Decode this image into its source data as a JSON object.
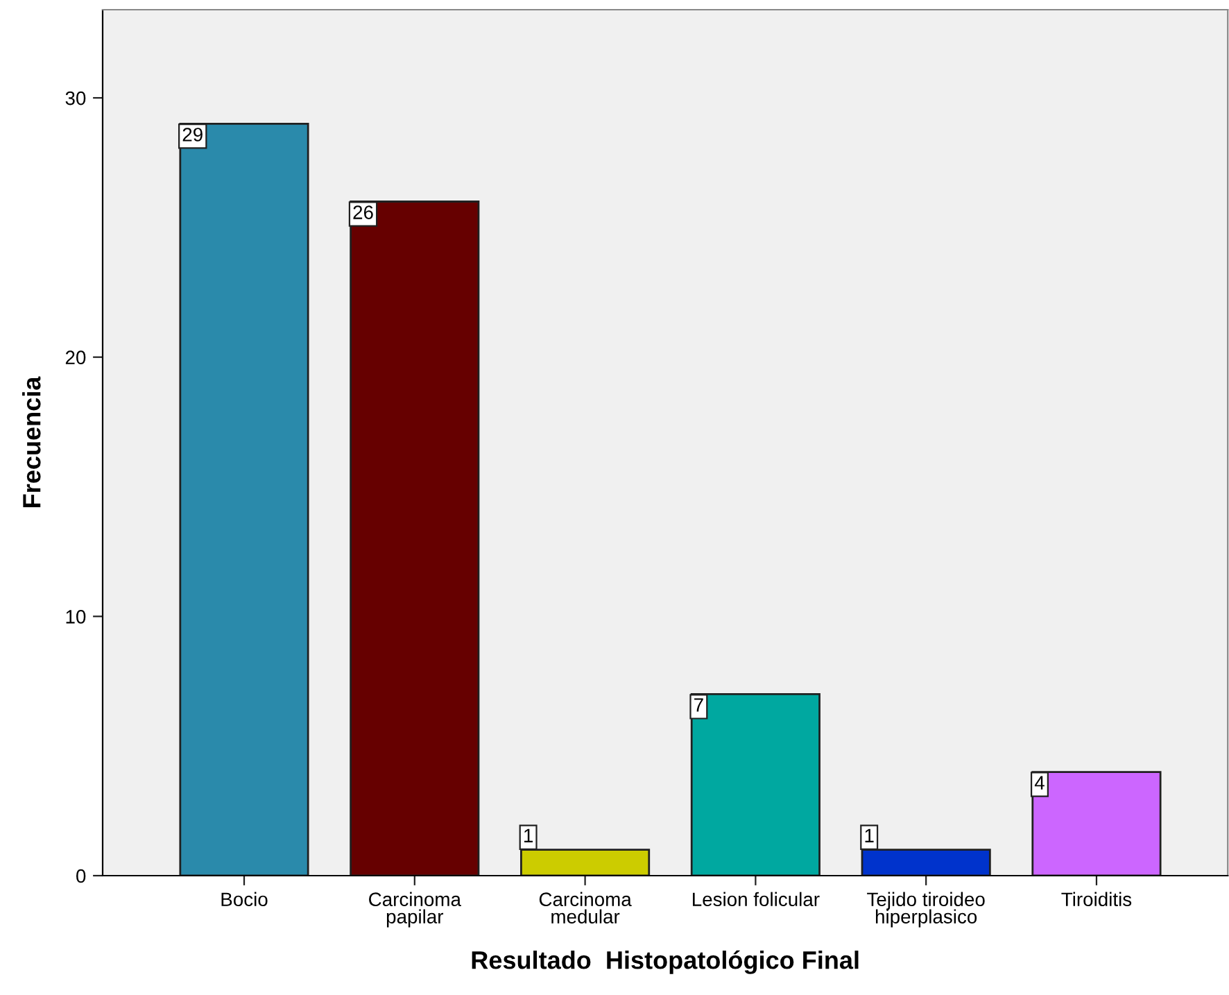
{
  "chart_data": {
    "type": "bar",
    "xlabel": "Resultado  Histopatológico Final",
    "ylabel": "Frecuencia",
    "categories": [
      "Bocio",
      "Carcinoma\npapilar",
      "Carcinoma\nmedular",
      "Lesion folicular",
      "Tejido tiroideo\nhiperplasico",
      "Tiroiditis"
    ],
    "values": [
      29,
      26,
      1,
      7,
      1,
      4
    ],
    "colors": [
      "#2a8aab",
      "#660000",
      "#cccc00",
      "#00a8a0",
      "#0033cc",
      "#cc66ff"
    ],
    "ylim": [
      0,
      33.4
    ],
    "yticks": [
      0,
      10,
      20,
      30
    ],
    "grid": false,
    "data_labels": true
  }
}
